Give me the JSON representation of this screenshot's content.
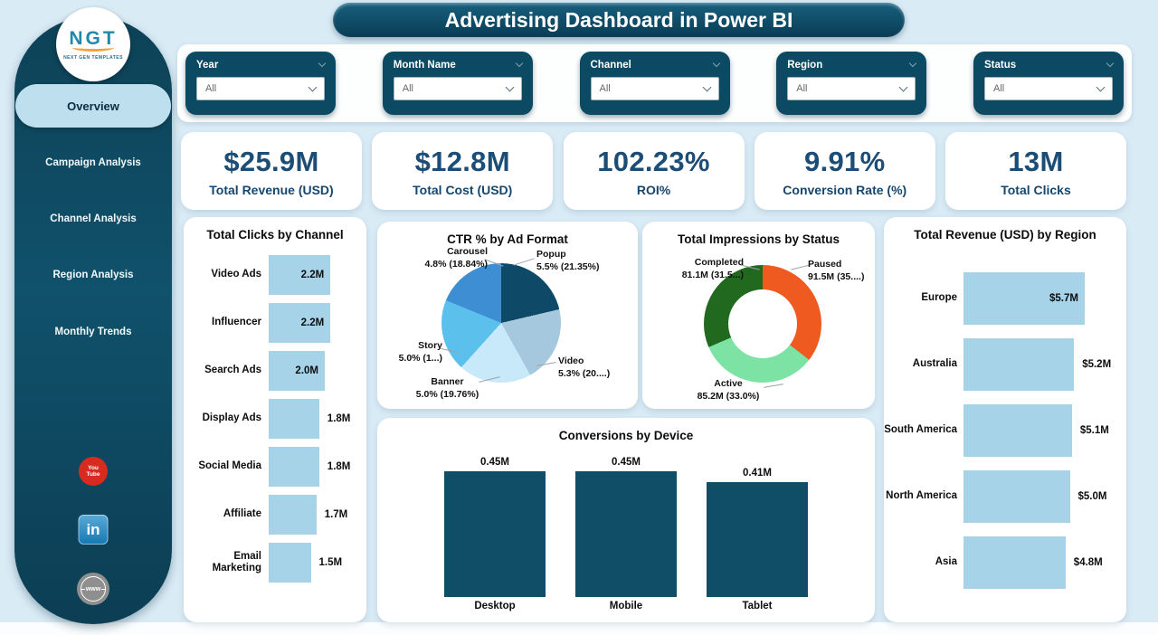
{
  "header": {
    "title": "Advertising Dashboard in Power BI"
  },
  "sidebar": {
    "logo_text": "NGT",
    "logo_subtext": "NEXT GEN TEMPLATES",
    "items": [
      {
        "label": "Overview",
        "active": true
      },
      {
        "label": "Campaign Analysis",
        "active": false
      },
      {
        "label": "Channel Analysis",
        "active": false
      },
      {
        "label": "Region Analysis",
        "active": false
      },
      {
        "label": "Monthly Trends",
        "active": false
      }
    ],
    "social": [
      {
        "name": "youtube",
        "line1": "You",
        "line2": "Tube"
      },
      {
        "name": "linkedin",
        "label": "in"
      },
      {
        "name": "website",
        "label": "www"
      }
    ]
  },
  "filters": [
    {
      "label": "Year",
      "value": "All"
    },
    {
      "label": "Month Name",
      "value": "All"
    },
    {
      "label": "Channel",
      "value": "All"
    },
    {
      "label": "Region",
      "value": "All"
    },
    {
      "label": "Status",
      "value": "All"
    }
  ],
  "kpis": [
    {
      "value": "$25.9M",
      "label": "Total Revenue (USD)"
    },
    {
      "value": "$12.8M",
      "label": "Total Cost (USD)"
    },
    {
      "value": "102.23%",
      "label": "ROI%"
    },
    {
      "value": "9.91%",
      "label": "Conversion Rate (%)"
    },
    {
      "value": "13M",
      "label": "Total Clicks"
    }
  ],
  "chart_data": [
    {
      "type": "bar",
      "orientation": "horizontal",
      "title": "Total Clicks by Channel",
      "categories": [
        "Video Ads",
        "Influencer",
        "Search Ads",
        "Display Ads",
        "Social Media",
        "Affiliate",
        "Email Marketing"
      ],
      "values": [
        2.2,
        2.2,
        2.0,
        1.8,
        1.8,
        1.7,
        1.5
      ],
      "labels": [
        "2.2M",
        "2.2M",
        "2.0M",
        "1.8M",
        "1.8M",
        "1.7M",
        "1.5M"
      ],
      "inside": [
        true,
        true,
        true,
        false,
        false,
        false,
        false
      ],
      "unit": "M clicks",
      "bar_color": "#a6d3e8"
    },
    {
      "type": "pie",
      "title": "CTR % by Ad Format",
      "slices": [
        {
          "name": "Popup",
          "label": "5.5% (21.35%)",
          "value": 5.5,
          "share": 21.35,
          "color": "#0e4a68"
        },
        {
          "name": "Video",
          "label": "5.3% (20....)",
          "value": 5.3,
          "share": 20.6,
          "color": "#a5c8de"
        },
        {
          "name": "Banner",
          "label": "5.0% (19.76%)",
          "value": 5.0,
          "share": 19.76,
          "color": "#c8e9f9"
        },
        {
          "name": "Story",
          "label": "5.0% (1...)",
          "value": 5.0,
          "share": 19.55,
          "color": "#5cc0ec"
        },
        {
          "name": "Carousel",
          "label": "4.8% (18.84%)",
          "value": 4.8,
          "share": 18.84,
          "color": "#3d8ed2"
        }
      ]
    },
    {
      "type": "donut",
      "title": "Total Impressions by Status",
      "slices": [
        {
          "name": "Paused",
          "label": "91.5M (35....)",
          "value": 91.5,
          "share": 35.5,
          "color": "#ee5a1f"
        },
        {
          "name": "Active",
          "label": "85.2M (33.0%)",
          "value": 85.2,
          "share": 33.0,
          "color": "#7ce3a4"
        },
        {
          "name": "Completed",
          "label": "81.1M (31.5...)",
          "value": 81.1,
          "share": 31.5,
          "color": "#20691f"
        }
      ]
    },
    {
      "type": "bar",
      "orientation": "vertical",
      "title": "Conversions by Device",
      "categories": [
        "Desktop",
        "Mobile",
        "Tablet"
      ],
      "values": [
        0.45,
        0.45,
        0.41
      ],
      "labels": [
        "0.45M",
        "0.45M",
        "0.41M"
      ],
      "unit": "M conversions",
      "bar_color": "#0f4e66"
    },
    {
      "type": "bar",
      "orientation": "horizontal",
      "title": "Total Revenue (USD) by Region",
      "categories": [
        "Europe",
        "Australia",
        "South America",
        "North America",
        "Asia"
      ],
      "values": [
        5.7,
        5.2,
        5.1,
        5.0,
        4.8
      ],
      "labels": [
        "$5.7M",
        "$5.2M",
        "$5.1M",
        "$5.0M",
        "$4.8M"
      ],
      "inside": [
        true,
        false,
        false,
        false,
        false
      ],
      "unit": "M USD",
      "bar_color": "#a6d3e8"
    }
  ]
}
